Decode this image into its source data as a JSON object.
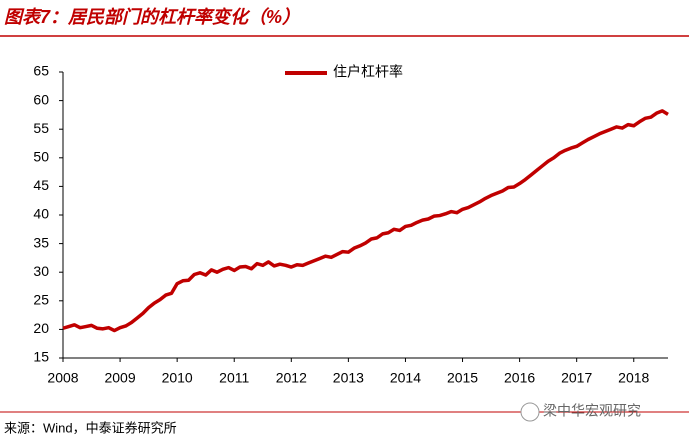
{
  "chart_data": {
    "type": "line",
    "title": "图表7：居民部门的杠杆率变化（%）",
    "source": "来源：Wind，中泰证券研究所",
    "watermark": "梁中华宏观研究",
    "x": [
      2008.0,
      2008.1,
      2008.2,
      2008.3,
      2008.4,
      2008.5,
      2008.6,
      2008.7,
      2008.8,
      2008.9,
      2009.0,
      2009.1,
      2009.2,
      2009.3,
      2009.4,
      2009.5,
      2009.6,
      2009.7,
      2009.8,
      2009.9,
      2010.0,
      2010.1,
      2010.2,
      2010.3,
      2010.4,
      2010.5,
      2010.6,
      2010.7,
      2010.8,
      2010.9,
      2011.0,
      2011.1,
      2011.2,
      2011.3,
      2011.4,
      2011.5,
      2011.6,
      2011.7,
      2011.8,
      2011.9,
      2012.0,
      2012.1,
      2012.2,
      2012.3,
      2012.4,
      2012.5,
      2012.6,
      2012.7,
      2012.8,
      2012.9,
      2013.0,
      2013.1,
      2013.2,
      2013.3,
      2013.4,
      2013.5,
      2013.6,
      2013.7,
      2013.8,
      2013.9,
      2014.0,
      2014.1,
      2014.2,
      2014.3,
      2014.4,
      2014.5,
      2014.6,
      2014.7,
      2014.8,
      2014.9,
      2015.0,
      2015.1,
      2015.2,
      2015.3,
      2015.4,
      2015.5,
      2015.6,
      2015.7,
      2015.8,
      2015.9,
      2016.0,
      2016.1,
      2016.2,
      2016.3,
      2016.4,
      2016.5,
      2016.6,
      2016.7,
      2016.8,
      2016.9,
      2017.0,
      2017.1,
      2017.2,
      2017.3,
      2017.4,
      2017.5,
      2017.6,
      2017.7,
      2017.8,
      2017.9,
      2018.0,
      2018.1,
      2018.2,
      2018.3,
      2018.4,
      2018.5,
      2018.6
    ],
    "series": [
      {
        "name": "住户杠杆率",
        "color": "#c00000",
        "values": [
          20.2,
          20.5,
          20.8,
          20.3,
          20.5,
          20.7,
          20.2,
          20.1,
          20.3,
          19.8,
          20.3,
          20.6,
          21.2,
          22.0,
          22.8,
          23.8,
          24.6,
          25.2,
          26.0,
          26.3,
          28.0,
          28.5,
          28.6,
          29.6,
          29.9,
          29.5,
          30.4,
          30.0,
          30.5,
          30.8,
          30.3,
          30.9,
          31.0,
          30.6,
          31.5,
          31.2,
          31.8,
          31.1,
          31.4,
          31.2,
          30.9,
          31.3,
          31.2,
          31.6,
          32.0,
          32.4,
          32.8,
          32.6,
          33.1,
          33.6,
          33.5,
          34.2,
          34.6,
          35.1,
          35.8,
          36.0,
          36.7,
          36.9,
          37.5,
          37.3,
          38.0,
          38.2,
          38.7,
          39.1,
          39.3,
          39.8,
          39.9,
          40.2,
          40.6,
          40.4,
          41.0,
          41.3,
          41.8,
          42.3,
          42.9,
          43.4,
          43.8,
          44.2,
          44.8,
          44.9,
          45.5,
          46.2,
          47.0,
          47.8,
          48.6,
          49.4,
          50.0,
          50.8,
          51.3,
          51.7,
          52.0,
          52.6,
          53.2,
          53.7,
          54.2,
          54.6,
          55.0,
          55.4,
          55.2,
          55.8,
          55.6,
          56.3,
          56.9,
          57.1,
          57.8,
          58.2,
          57.6
        ]
      }
    ],
    "xlim": [
      2008,
      2018.6
    ],
    "xticks": [
      2008,
      2009,
      2010,
      2011,
      2012,
      2013,
      2014,
      2015,
      2016,
      2017,
      2018
    ],
    "ylim": [
      15,
      65
    ],
    "yticks": [
      15,
      20,
      25,
      30,
      35,
      40,
      45,
      50,
      55,
      60,
      65
    ],
    "grid": false,
    "legend": "top"
  }
}
